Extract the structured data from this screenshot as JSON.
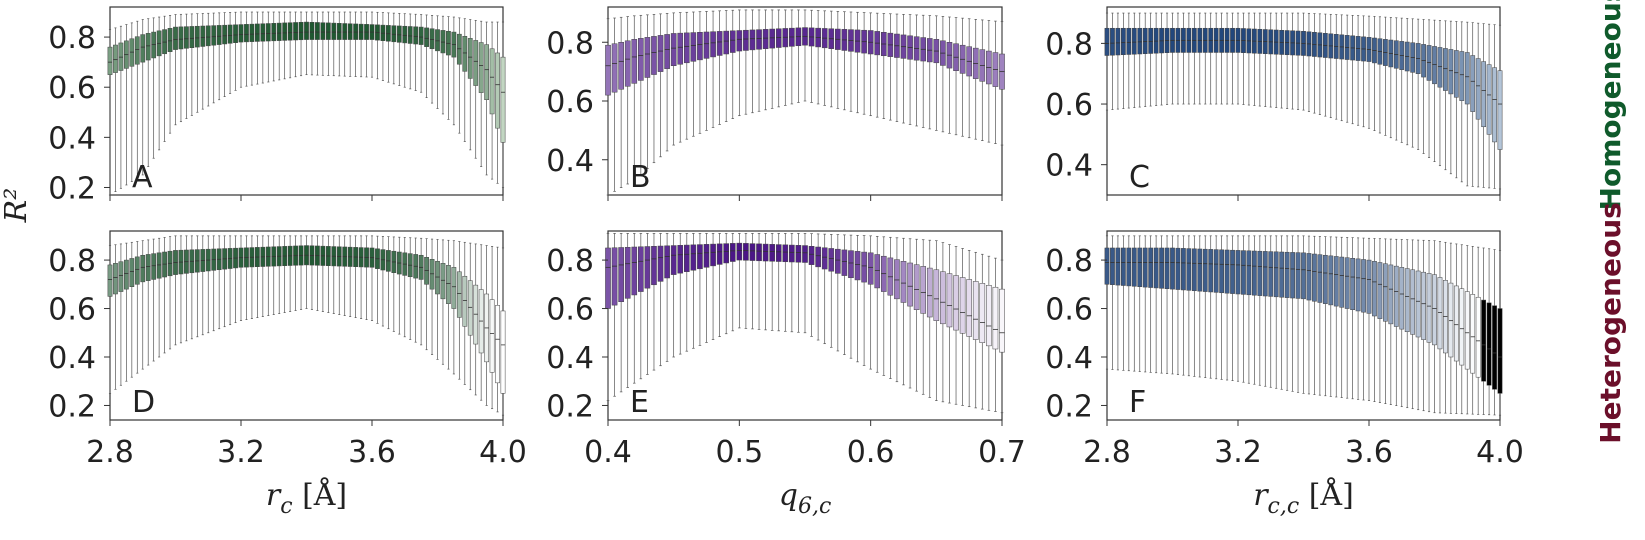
{
  "figure": {
    "ylabel": "R²",
    "row_labels": [
      {
        "text": "Homogeneous",
        "color": "#0f5a2b"
      },
      {
        "text": "Heterogeneous",
        "color": "#6b0f2a"
      }
    ]
  },
  "chart_data": [
    {
      "type": "box",
      "panel": "A",
      "row": 0,
      "col": 0,
      "x_range": [
        2.8,
        4.0
      ],
      "n_boxes": 73,
      "xticks": [
        2.8,
        3.2,
        3.6,
        4.0
      ],
      "xtick_labels": [
        "2.8",
        "3.2",
        "3.6",
        "4.0"
      ],
      "ylim": [
        0.17,
        0.92
      ],
      "yticks": [
        0.2,
        0.4,
        0.6,
        0.8
      ],
      "ytick_labels": [
        "0.2",
        "0.4",
        "0.6",
        "0.8"
      ],
      "xlabel": "",
      "ylabel": "",
      "colormap": [
        "#e8f3e4",
        "#0d4a21"
      ],
      "keyframes": [
        {
          "x": 2.8,
          "whislo": 0.17,
          "q1": 0.65,
          "med": 0.7,
          "q3": 0.76,
          "whishi": 0.83
        },
        {
          "x": 2.9,
          "whislo": 0.25,
          "q1": 0.7,
          "med": 0.76,
          "q3": 0.81,
          "whishi": 0.87
        },
        {
          "x": 3.0,
          "whislo": 0.45,
          "q1": 0.75,
          "med": 0.79,
          "q3": 0.84,
          "whishi": 0.89
        },
        {
          "x": 3.2,
          "whislo": 0.6,
          "q1": 0.78,
          "med": 0.81,
          "q3": 0.85,
          "whishi": 0.9
        },
        {
          "x": 3.4,
          "whislo": 0.65,
          "q1": 0.79,
          "med": 0.82,
          "q3": 0.86,
          "whishi": 0.9
        },
        {
          "x": 3.6,
          "whislo": 0.64,
          "q1": 0.79,
          "med": 0.82,
          "q3": 0.85,
          "whishi": 0.9
        },
        {
          "x": 3.75,
          "whislo": 0.58,
          "q1": 0.77,
          "med": 0.8,
          "q3": 0.84,
          "whishi": 0.89
        },
        {
          "x": 3.85,
          "whislo": 0.45,
          "q1": 0.72,
          "med": 0.77,
          "q3": 0.82,
          "whishi": 0.88
        },
        {
          "x": 3.95,
          "whislo": 0.25,
          "q1": 0.55,
          "med": 0.67,
          "q3": 0.77,
          "whishi": 0.86
        },
        {
          "x": 4.0,
          "whislo": 0.2,
          "q1": 0.38,
          "med": 0.58,
          "q3": 0.72,
          "whishi": 0.86
        }
      ],
      "color_by": "med"
    },
    {
      "type": "box",
      "panel": "B",
      "row": 0,
      "col": 1,
      "x_range": [
        0.4,
        0.7
      ],
      "n_boxes": 61,
      "xticks": [
        0.4,
        0.5,
        0.6,
        0.7
      ],
      "xtick_labels": [
        "0.4",
        "0.5",
        "0.6",
        "0.7"
      ],
      "ylim": [
        0.28,
        0.92
      ],
      "yticks": [
        0.4,
        0.6,
        0.8
      ],
      "ytick_labels": [
        "0.4",
        "0.6",
        "0.8"
      ],
      "xlabel": "",
      "ylabel": "",
      "colormap": [
        "#f0eef6",
        "#4a1486"
      ],
      "keyframes": [
        {
          "x": 0.4,
          "whislo": 0.28,
          "q1": 0.62,
          "med": 0.72,
          "q3": 0.79,
          "whishi": 0.88
        },
        {
          "x": 0.42,
          "whislo": 0.33,
          "q1": 0.66,
          "med": 0.75,
          "q3": 0.81,
          "whishi": 0.89
        },
        {
          "x": 0.45,
          "whislo": 0.45,
          "q1": 0.72,
          "med": 0.78,
          "q3": 0.83,
          "whishi": 0.9
        },
        {
          "x": 0.5,
          "whislo": 0.55,
          "q1": 0.77,
          "med": 0.81,
          "q3": 0.84,
          "whishi": 0.91
        },
        {
          "x": 0.55,
          "whislo": 0.6,
          "q1": 0.79,
          "med": 0.82,
          "q3": 0.85,
          "whishi": 0.91
        },
        {
          "x": 0.6,
          "whislo": 0.55,
          "q1": 0.76,
          "med": 0.8,
          "q3": 0.84,
          "whishi": 0.9
        },
        {
          "x": 0.65,
          "whislo": 0.5,
          "q1": 0.73,
          "med": 0.77,
          "q3": 0.81,
          "whishi": 0.89
        },
        {
          "x": 0.7,
          "whislo": 0.45,
          "q1": 0.64,
          "med": 0.7,
          "q3": 0.76,
          "whishi": 0.87
        }
      ],
      "color_by": "med"
    },
    {
      "type": "box",
      "panel": "C",
      "row": 0,
      "col": 2,
      "x_range": [
        2.8,
        4.0
      ],
      "n_boxes": 73,
      "xticks": [
        2.8,
        3.2,
        3.6,
        4.0
      ],
      "xtick_labels": [
        "2.8",
        "3.2",
        "3.6",
        "4.0"
      ],
      "ylim": [
        0.3,
        0.92
      ],
      "yticks": [
        0.4,
        0.6,
        0.8
      ],
      "ytick_labels": [
        "0.4",
        "0.6",
        "0.8"
      ],
      "xlabel": "",
      "ylabel": "",
      "colormap": [
        "#e4eef6",
        "#08306b"
      ],
      "keyframes": [
        {
          "x": 2.8,
          "whislo": 0.58,
          "q1": 0.76,
          "med": 0.8,
          "q3": 0.85,
          "whishi": 0.9
        },
        {
          "x": 3.0,
          "whislo": 0.6,
          "q1": 0.77,
          "med": 0.81,
          "q3": 0.85,
          "whishi": 0.9
        },
        {
          "x": 3.2,
          "whislo": 0.6,
          "q1": 0.77,
          "med": 0.81,
          "q3": 0.85,
          "whishi": 0.9
        },
        {
          "x": 3.4,
          "whislo": 0.58,
          "q1": 0.76,
          "med": 0.8,
          "q3": 0.84,
          "whishi": 0.9
        },
        {
          "x": 3.6,
          "whislo": 0.52,
          "q1": 0.74,
          "med": 0.78,
          "q3": 0.82,
          "whishi": 0.89
        },
        {
          "x": 3.75,
          "whislo": 0.45,
          "q1": 0.7,
          "med": 0.75,
          "q3": 0.8,
          "whishi": 0.88
        },
        {
          "x": 3.9,
          "whislo": 0.33,
          "q1": 0.6,
          "med": 0.69,
          "q3": 0.77,
          "whishi": 0.87
        },
        {
          "x": 4.0,
          "whislo": 0.32,
          "q1": 0.45,
          "med": 0.6,
          "q3": 0.71,
          "whishi": 0.86
        }
      ],
      "color_by": "med"
    },
    {
      "type": "box",
      "panel": "D",
      "row": 1,
      "col": 0,
      "x_range": [
        2.8,
        4.0
      ],
      "n_boxes": 73,
      "xticks": [
        2.8,
        3.2,
        3.6,
        4.0
      ],
      "xtick_labels": [
        "2.8",
        "3.2",
        "3.6",
        "4.0"
      ],
      "ylim": [
        0.14,
        0.92
      ],
      "yticks": [
        0.2,
        0.4,
        0.6,
        0.8
      ],
      "ytick_labels": [
        "0.2",
        "0.4",
        "0.6",
        "0.8"
      ],
      "xlabel": "r_c [Å]",
      "ylabel": "",
      "colormap": [
        "#ffffff",
        "#0d4a21"
      ],
      "keyframes": [
        {
          "x": 2.8,
          "whislo": 0.25,
          "q1": 0.65,
          "med": 0.72,
          "q3": 0.78,
          "whishi": 0.86
        },
        {
          "x": 2.9,
          "whislo": 0.35,
          "q1": 0.71,
          "med": 0.77,
          "q3": 0.82,
          "whishi": 0.88
        },
        {
          "x": 3.0,
          "whislo": 0.45,
          "q1": 0.74,
          "med": 0.79,
          "q3": 0.84,
          "whishi": 0.9
        },
        {
          "x": 3.2,
          "whislo": 0.55,
          "q1": 0.77,
          "med": 0.81,
          "q3": 0.85,
          "whishi": 0.9
        },
        {
          "x": 3.4,
          "whislo": 0.6,
          "q1": 0.78,
          "med": 0.82,
          "q3": 0.86,
          "whishi": 0.9
        },
        {
          "x": 3.6,
          "whislo": 0.55,
          "q1": 0.77,
          "med": 0.81,
          "q3": 0.85,
          "whishi": 0.9
        },
        {
          "x": 3.75,
          "whislo": 0.45,
          "q1": 0.72,
          "med": 0.77,
          "q3": 0.82,
          "whishi": 0.89
        },
        {
          "x": 3.85,
          "whislo": 0.33,
          "q1": 0.6,
          "med": 0.69,
          "q3": 0.77,
          "whishi": 0.88
        },
        {
          "x": 3.95,
          "whislo": 0.2,
          "q1": 0.38,
          "med": 0.52,
          "q3": 0.66,
          "whishi": 0.86
        },
        {
          "x": 4.0,
          "whislo": 0.16,
          "q1": 0.25,
          "med": 0.45,
          "q3": 0.59,
          "whishi": 0.85
        }
      ],
      "color_by": "med"
    },
    {
      "type": "box",
      "panel": "E",
      "row": 1,
      "col": 1,
      "x_range": [
        0.4,
        0.7
      ],
      "n_boxes": 61,
      "xticks": [
        0.4,
        0.5,
        0.6,
        0.7
      ],
      "xtick_labels": [
        "0.4",
        "0.5",
        "0.6",
        "0.7"
      ],
      "ylim": [
        0.14,
        0.92
      ],
      "yticks": [
        0.2,
        0.4,
        0.6,
        0.8
      ],
      "ytick_labels": [
        "0.2",
        "0.4",
        "0.6",
        "0.8"
      ],
      "xlabel": "q_6,c",
      "ylabel": "",
      "colormap": [
        "#ffffff",
        "#4a1486"
      ],
      "keyframes": [
        {
          "x": 0.4,
          "whislo": 0.22,
          "q1": 0.6,
          "med": 0.77,
          "q3": 0.85,
          "whishi": 0.91
        },
        {
          "x": 0.45,
          "whislo": 0.4,
          "q1": 0.74,
          "med": 0.82,
          "q3": 0.86,
          "whishi": 0.91
        },
        {
          "x": 0.5,
          "whislo": 0.52,
          "q1": 0.8,
          "med": 0.84,
          "q3": 0.87,
          "whishi": 0.91
        },
        {
          "x": 0.55,
          "whislo": 0.5,
          "q1": 0.79,
          "med": 0.83,
          "q3": 0.86,
          "whishi": 0.91
        },
        {
          "x": 0.6,
          "whislo": 0.35,
          "q1": 0.7,
          "med": 0.77,
          "q3": 0.83,
          "whishi": 0.9
        },
        {
          "x": 0.65,
          "whislo": 0.22,
          "q1": 0.55,
          "med": 0.64,
          "q3": 0.76,
          "whishi": 0.88
        },
        {
          "x": 0.7,
          "whislo": 0.17,
          "q1": 0.42,
          "med": 0.5,
          "q3": 0.68,
          "whishi": 0.8
        }
      ],
      "color_by": "med"
    },
    {
      "type": "box",
      "panel": "F",
      "row": 1,
      "col": 2,
      "x_range": [
        2.8,
        4.0
      ],
      "n_boxes": 73,
      "xticks": [
        2.8,
        3.2,
        3.6,
        4.0
      ],
      "xtick_labels": [
        "2.8",
        "3.2",
        "3.6",
        "4.0"
      ],
      "ylim": [
        0.14,
        0.92
      ],
      "yticks": [
        0.2,
        0.4,
        0.6,
        0.8
      ],
      "ytick_labels": [
        "0.2",
        "0.4",
        "0.6",
        "0.8"
      ],
      "xlabel": "r_c,c [Å]",
      "ylabel": "",
      "colormap": [
        "#ffffff",
        "#08306b"
      ],
      "keyframes": [
        {
          "x": 2.8,
          "whislo": 0.35,
          "q1": 0.7,
          "med": 0.79,
          "q3": 0.85,
          "whishi": 0.9
        },
        {
          "x": 3.0,
          "whislo": 0.33,
          "q1": 0.68,
          "med": 0.79,
          "q3": 0.85,
          "whishi": 0.9
        },
        {
          "x": 3.2,
          "whislo": 0.3,
          "q1": 0.66,
          "med": 0.78,
          "q3": 0.84,
          "whishi": 0.9
        },
        {
          "x": 3.4,
          "whislo": 0.25,
          "q1": 0.64,
          "med": 0.76,
          "q3": 0.83,
          "whishi": 0.9
        },
        {
          "x": 3.6,
          "whislo": 0.22,
          "q1": 0.58,
          "med": 0.72,
          "q3": 0.8,
          "whishi": 0.89
        },
        {
          "x": 3.8,
          "whislo": 0.17,
          "q1": 0.45,
          "med": 0.6,
          "q3": 0.74,
          "whishi": 0.88
        },
        {
          "x": 4.0,
          "whislo": 0.16,
          "q1": 0.25,
          "med": 0.4,
          "q3": 0.6,
          "whishi": 0.84
        }
      ],
      "color_by": "med"
    }
  ]
}
